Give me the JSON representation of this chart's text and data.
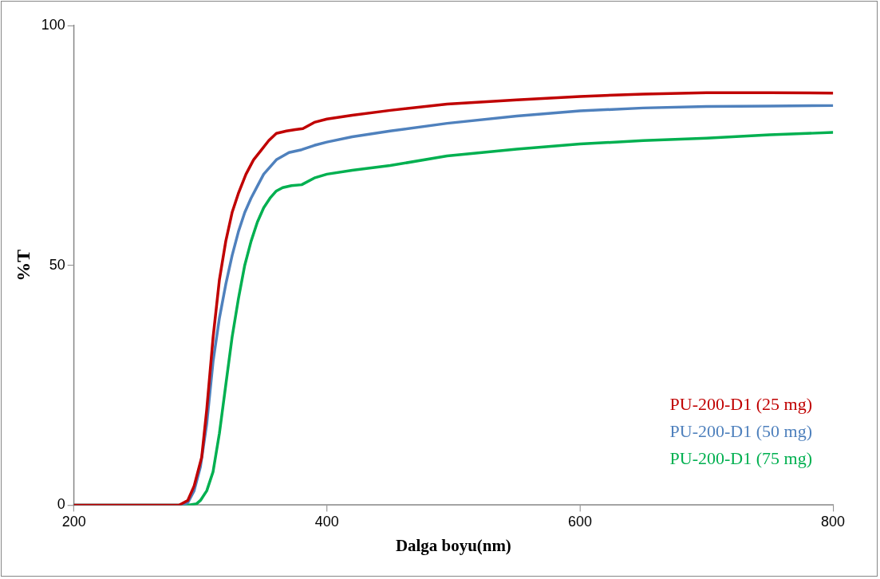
{
  "chart_data": {
    "type": "line",
    "xlabel": "Dalga boyu(nm)",
    "ylabel": "%T",
    "xlim": [
      200,
      800
    ],
    "xticks": [
      200,
      400,
      600,
      800
    ],
    "ylim": [
      0,
      100
    ],
    "yticks": [
      0,
      50,
      100
    ],
    "grid": false,
    "legend": "bottom right",
    "marker": "none",
    "line_style": "solid",
    "series": [
      {
        "name": "PU-200-D1 (25 mg)",
        "color": "#c00000",
        "x": [
          200,
          250,
          283,
          290,
          295,
          301,
          305,
          310,
          315,
          320,
          325,
          330,
          336,
          342,
          348,
          354,
          360,
          368,
          375,
          381,
          390,
          400,
          420,
          450,
          495,
          550,
          600,
          650,
          700,
          750,
          800
        ],
        "values": [
          0,
          0,
          0,
          1,
          4,
          10,
          20,
          35,
          47,
          55,
          61,
          65,
          69,
          72,
          74,
          76,
          77.5,
          78,
          78.3,
          78.5,
          79.8,
          80.5,
          81.3,
          82.3,
          83.6,
          84.5,
          85.2,
          85.7,
          86,
          86,
          85.9
        ]
      },
      {
        "name": "PU-200-D1 (50 mg)",
        "color": "#4f81bd",
        "x": [
          200,
          250,
          285,
          290,
          295,
          300,
          305,
          310,
          315,
          320,
          325,
          330,
          335,
          340,
          345,
          350,
          355,
          360,
          370,
          380,
          390,
          400,
          420,
          450,
          495,
          550,
          600,
          650,
          700,
          750,
          800
        ],
        "values": [
          0,
          0,
          0,
          0.5,
          3,
          8,
          17,
          30,
          39,
          46,
          52,
          57,
          61,
          64,
          66.5,
          69,
          70.5,
          72,
          73.5,
          74.1,
          75,
          75.7,
          76.8,
          78,
          79.6,
          81.1,
          82.2,
          82.8,
          83.1,
          83.2,
          83.3
        ]
      },
      {
        "name": "PU-200-D1 (75 mg)",
        "color": "#00b050",
        "x": [
          200,
          250,
          290,
          297,
          300,
          305,
          310,
          315,
          320,
          325,
          330,
          335,
          340,
          345,
          350,
          355,
          360,
          365,
          372,
          380,
          390,
          400,
          420,
          450,
          495,
          550,
          600,
          650,
          700,
          750,
          800
        ],
        "values": [
          0,
          0,
          0,
          0.3,
          1,
          3,
          7,
          15,
          25,
          35,
          43,
          50,
          55,
          59,
          62,
          64,
          65.5,
          66.2,
          66.6,
          66.8,
          68.2,
          69,
          69.8,
          70.8,
          72.8,
          74.2,
          75.3,
          76,
          76.5,
          77.2,
          77.7
        ]
      }
    ]
  }
}
